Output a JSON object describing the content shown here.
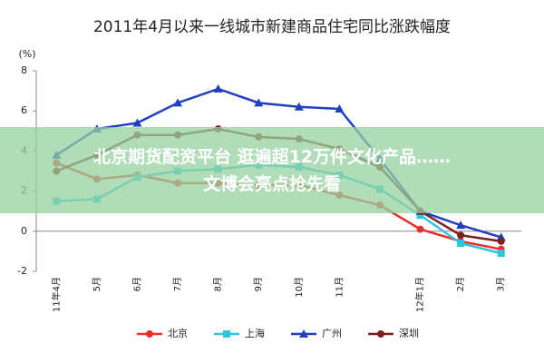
{
  "chart_data": {
    "type": "line",
    "title": "2011年4月以来一线城市新建商品住宅同比涨跌幅度",
    "y_label": "(%)",
    "categories": [
      "11年4月",
      "5月",
      "6月",
      "7月",
      "8月",
      "9月",
      "10月",
      "11月",
      null,
      "12年1月",
      "2月",
      "3月"
    ],
    "series": [
      {
        "name": "北京",
        "color": "#e8302a",
        "marker": "circle",
        "values": [
          3.4,
          2.6,
          2.8,
          2.4,
          2.4,
          2.3,
          2.3,
          1.8,
          1.3,
          0.1,
          -0.5,
          -0.9
        ]
      },
      {
        "name": "上海",
        "color": "#2ec4e0",
        "marker": "square",
        "values": [
          1.5,
          1.6,
          2.7,
          3.0,
          3.1,
          3.3,
          3.2,
          2.8,
          2.1,
          0.8,
          -0.6,
          -1.1
        ]
      },
      {
        "name": "广州",
        "color": "#1f3fbf",
        "marker": "triangle",
        "values": [
          3.8,
          5.1,
          5.4,
          6.4,
          7.1,
          6.4,
          6.2,
          6.1,
          3.6,
          1.0,
          0.3,
          -0.3
        ]
      },
      {
        "name": "深圳",
        "color": "#7b1f1f",
        "marker": "circle",
        "values": [
          3.0,
          3.8,
          4.8,
          4.8,
          5.1,
          4.7,
          4.6,
          4.1,
          3.2,
          1.0,
          -0.2,
          -0.5
        ]
      }
    ],
    "ylim": [
      -2,
      8
    ],
    "yticks": [
      -2,
      0,
      2,
      4,
      6,
      8
    ],
    "legend": "bottom"
  },
  "overlay": {
    "lines": [
      "北京期货配资平台 逛遍超12万件文化产品……",
      "文博会亮点抢先看"
    ]
  }
}
